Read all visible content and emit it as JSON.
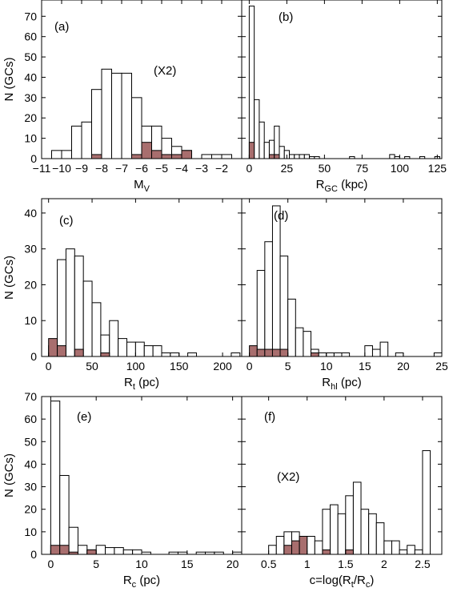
{
  "chart_data": [
    {
      "id": "a",
      "type": "bar",
      "panel_label": "(a)",
      "note": "(X2)",
      "xlabel": "M",
      "xlabel_sub": "V",
      "ylabel": "N (GCs)",
      "xlim": [
        -11,
        -1
      ],
      "ylim": [
        0,
        78
      ],
      "bin_width": 0.5,
      "xticks": [
        -11,
        -10,
        -9,
        -8,
        -7,
        -6,
        -5,
        -4,
        -3,
        -2
      ],
      "yticks": [
        0,
        10,
        20,
        30,
        40,
        50,
        60,
        70
      ],
      "series": [
        {
          "color": "#ffffff",
          "x": [
            -10.5,
            -10.0,
            -9.5,
            -9.0,
            -8.5,
            -8.0,
            -7.5,
            -7.0,
            -6.5,
            -6.0,
            -5.5,
            -5.0,
            -4.5,
            -4.0,
            -3.0,
            -2.5,
            -2.0
          ],
          "values": [
            4,
            4,
            16,
            18,
            34,
            44,
            42,
            42,
            30,
            16,
            16,
            10,
            6,
            4,
            2,
            2,
            2
          ]
        },
        {
          "color": "#a86e6e",
          "x": [
            -8.5,
            -6.5,
            -6.0,
            -5.5,
            -5.0,
            -4.5,
            -4.0
          ],
          "values": [
            2,
            2,
            8,
            4,
            2,
            2,
            4
          ]
        }
      ]
    },
    {
      "id": "b",
      "type": "bar",
      "panel_label": "(b)",
      "xlabel": "R",
      "xlabel_sub": "GC",
      "xlabel_unit": " (kpc)",
      "xlim": [
        -5,
        128
      ],
      "ylim": [
        0,
        78
      ],
      "bin_width": 3.33,
      "xticks": [
        0,
        25,
        50,
        75,
        100,
        125
      ],
      "yticks": [
        0,
        10,
        20,
        30,
        40,
        50,
        60,
        70
      ],
      "series": [
        {
          "color": "#ffffff",
          "x": [
            0,
            3.33,
            6.67,
            10,
            13.33,
            16.67,
            20,
            23.33,
            26.67,
            30,
            33.33,
            36.67,
            40,
            43.33,
            66.67,
            93.33,
            96.67,
            103.33,
            113.33,
            123.33
          ],
          "values": [
            75,
            29,
            18,
            8,
            9,
            16,
            6,
            4,
            2,
            2,
            2,
            2,
            1,
            1,
            1,
            2,
            1,
            1,
            1,
            1
          ]
        },
        {
          "color": "#a86e6e",
          "x": [
            0,
            13.33,
            16.67
          ],
          "values": [
            8,
            2,
            2
          ]
        }
      ]
    },
    {
      "id": "c",
      "type": "bar",
      "panel_label": "(c)",
      "xlabel": "R",
      "xlabel_sub": "t",
      "xlabel_unit": " (pc)",
      "ylabel": "N (GCs)",
      "xlim": [
        -8,
        222
      ],
      "ylim": [
        0,
        44
      ],
      "bin_width": 10,
      "xticks": [
        0,
        50,
        100,
        150,
        200
      ],
      "yticks": [
        0,
        10,
        20,
        30,
        40
      ],
      "series": [
        {
          "color": "#ffffff",
          "x": [
            0,
            10,
            20,
            30,
            40,
            50,
            60,
            70,
            80,
            90,
            100,
            110,
            120,
            130,
            140,
            150,
            160,
            170,
            180,
            190,
            200,
            210
          ],
          "values": [
            3,
            27,
            30,
            28,
            21,
            15,
            6,
            10,
            5,
            4,
            4,
            3,
            3,
            1,
            1,
            0,
            1,
            0,
            0,
            0,
            0,
            1
          ]
        },
        {
          "color": "#a86e6e",
          "x": [
            0,
            10,
            30,
            60
          ],
          "values": [
            5,
            3,
            2,
            1
          ]
        }
      ]
    },
    {
      "id": "d",
      "type": "bar",
      "panel_label": "(d)",
      "xlabel": "R",
      "xlabel_sub": "hl",
      "xlabel_unit": " (pc)",
      "xlim": [
        -1,
        25
      ],
      "ylim": [
        0,
        44
      ],
      "bin_width": 1,
      "xticks": [
        0,
        5,
        10,
        15,
        20,
        25
      ],
      "yticks": [
        0,
        10,
        20,
        30,
        40
      ],
      "series": [
        {
          "color": "#ffffff",
          "x": [
            0,
            1,
            2,
            3,
            4,
            5,
            6,
            7,
            8,
            9,
            10,
            11,
            12,
            15,
            16,
            17,
            19,
            24
          ],
          "values": [
            1,
            24,
            32,
            42,
            28,
            16,
            8,
            7,
            2,
            1,
            1,
            1,
            1,
            3,
            2,
            4,
            1,
            1
          ]
        },
        {
          "color": "#a86e6e",
          "x": [
            0,
            1,
            2,
            3,
            4,
            8
          ],
          "values": [
            3,
            2,
            2,
            2,
            2,
            1
          ]
        }
      ]
    },
    {
      "id": "e",
      "type": "bar",
      "panel_label": "(e)",
      "xlabel": "R",
      "xlabel_sub": "c",
      "xlabel_unit": " (pc)",
      "ylabel": "N (GCs)",
      "xlim": [
        -1,
        21
      ],
      "ylim": [
        0,
        70
      ],
      "bin_width": 1,
      "xticks": [
        0,
        5,
        10,
        15,
        20
      ],
      "yticks": [
        0,
        10,
        20,
        30,
        40,
        50,
        60,
        70
      ],
      "series": [
        {
          "color": "#ffffff",
          "x": [
            0,
            1,
            2,
            3,
            4,
            5,
            6,
            7,
            8,
            9,
            10,
            13,
            14,
            16,
            17,
            18,
            20
          ],
          "values": [
            68,
            35,
            12,
            4,
            2,
            4,
            3,
            3,
            2,
            2,
            1,
            1,
            1,
            1,
            1,
            1,
            1
          ]
        },
        {
          "color": "#a86e6e",
          "x": [
            0,
            1,
            2,
            4
          ],
          "values": [
            4,
            4,
            1,
            2
          ]
        }
      ]
    },
    {
      "id": "f",
      "type": "bar",
      "panel_label": "(f)",
      "note": "(X2)",
      "xlabel": "c=log(R",
      "xlabel_sub": "t",
      "xlabel_mid": "/R",
      "xlabel_sub2": "c",
      "xlabel_end": ")",
      "xlim": [
        0.15,
        2.75
      ],
      "ylim": [
        0,
        70
      ],
      "bin_width": 0.1,
      "xticks": [
        0.5,
        1.0,
        1.5,
        2.0,
        2.5
      ],
      "xtick_labels": [
        "0.5",
        "1",
        "1.5",
        "2",
        "2.5"
      ],
      "yticks": [
        0,
        10,
        20,
        30,
        40,
        50,
        60,
        70
      ],
      "series": [
        {
          "color": "#ffffff",
          "x": [
            0.5,
            0.6,
            0.7,
            0.8,
            0.9,
            1.0,
            1.1,
            1.2,
            1.3,
            1.4,
            1.5,
            1.6,
            1.7,
            1.8,
            1.9,
            2.0,
            2.1,
            2.2,
            2.3,
            2.4,
            2.5
          ],
          "values": [
            4,
            8,
            10,
            10,
            8,
            8,
            6,
            20,
            22,
            18,
            26,
            32,
            20,
            18,
            14,
            6,
            6,
            2,
            4,
            2,
            46
          ]
        },
        {
          "color": "#a86e6e",
          "x": [
            0.7,
            0.8,
            0.9,
            1.2,
            1.5
          ],
          "values": [
            4,
            6,
            8,
            2,
            2
          ]
        }
      ]
    }
  ]
}
